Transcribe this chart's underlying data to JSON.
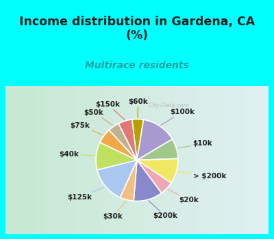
{
  "title": "Income distribution in Gardena, CA\n(%)",
  "subtitle": "Multirace residents",
  "labels": [
    "$60k",
    "$100k",
    "$10k",
    "> $200k",
    "$20k",
    "$200k",
    "$30k",
    "$125k",
    "$40k",
    "$75k",
    "$50k",
    "$150k"
  ],
  "values": [
    4.5,
    14.0,
    8.0,
    10.0,
    5.5,
    11.5,
    5.5,
    14.5,
    11.0,
    6.0,
    4.5,
    5.5
  ],
  "colors": [
    "#b8a000",
    "#a89ad0",
    "#a0c888",
    "#f0e860",
    "#f0a8b8",
    "#8888cc",
    "#f0c080",
    "#a8c8f0",
    "#c0e060",
    "#f0a848",
    "#c0b090",
    "#e07878"
  ],
  "background_color": "#00ffff",
  "chart_bg_color": "#d8f0e0",
  "title_color": "#202020",
  "subtitle_color": "#20a0a0",
  "label_color": "#202020",
  "watermark": "City-Data.com",
  "startangle": 97,
  "label_fontsize": 7.5,
  "title_fontsize": 12.5,
  "subtitle_fontsize": 10
}
